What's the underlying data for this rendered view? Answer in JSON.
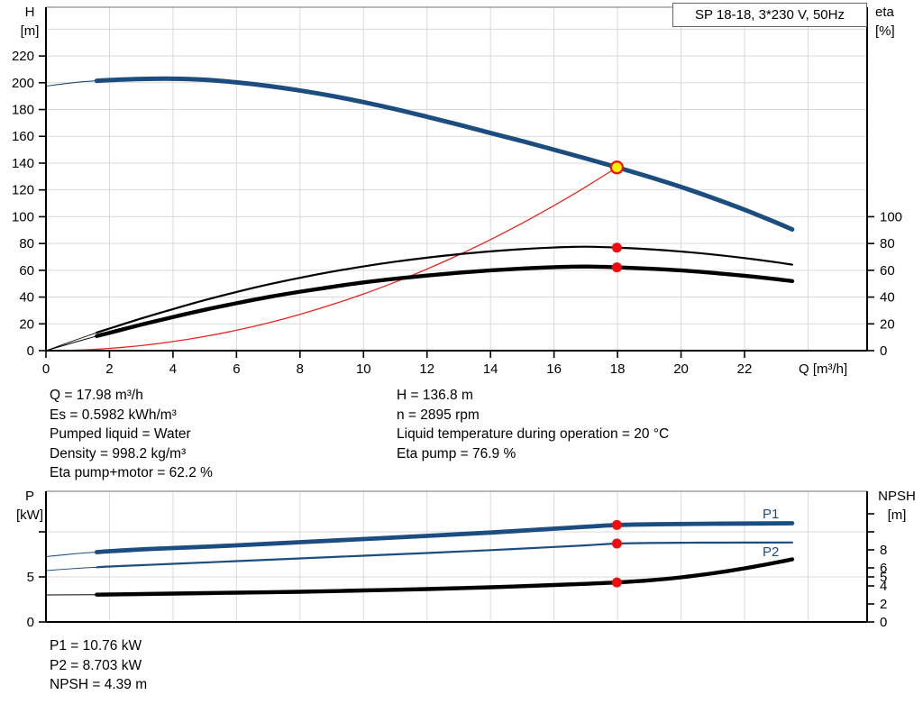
{
  "colors": {
    "blue": "#1b4d80",
    "black": "#000000",
    "red": "#e8251d",
    "marker_red": "#f20d0d",
    "duty_fill": "#ffee00",
    "grid": "#d9d9d9",
    "border": "#a0a0a0",
    "axis": "#000000"
  },
  "info_left": {
    "q": "Q = 17.98 m³/h",
    "es": "Es = 0.5982 kWh/m³",
    "liquid": "Pumped liquid = Water",
    "density": "Density = 998.2 kg/m³",
    "eta_pump_motor": "Eta pump+motor = 62.2 %"
  },
  "info_right": {
    "h": "H = 136.8 m",
    "n": "n = 2895 rpm",
    "temp": "Liquid temperature during operation = 20 °C",
    "eta_pump": "Eta pump = 76.9 %"
  },
  "results": {
    "p1": "P1 = 10.76 kW",
    "p2": "P2 = 8.703 kW",
    "npsh": "NPSH = 4.39 m"
  },
  "inplot_labels": {
    "p1": "P1",
    "p2": "P2"
  },
  "chart_data": [
    {
      "type": "line",
      "name": "head-efficiency-chart",
      "title": "SP 18-18, 3*230 V, 50Hz",
      "x_axis": {
        "label": "Q [m³/h]",
        "range": [
          0,
          25.86
        ],
        "ticks": [
          [
            0,
            "0"
          ],
          [
            2,
            "2"
          ],
          [
            4,
            "4"
          ],
          [
            6,
            "6"
          ],
          [
            8,
            "8"
          ],
          [
            10,
            "10"
          ],
          [
            12,
            "12"
          ],
          [
            14,
            "14"
          ],
          [
            16,
            "16"
          ],
          [
            18,
            "18"
          ],
          [
            20,
            "20"
          ],
          [
            22,
            "22"
          ]
        ],
        "gridlines": [
          2,
          4,
          6,
          8,
          10,
          12,
          14,
          16,
          18,
          20,
          22,
          24
        ]
      },
      "y_left": {
        "label": "H",
        "unit": "[m]",
        "range": [
          0,
          256.4
        ],
        "ticks": [
          [
            0,
            "0"
          ],
          [
            20,
            "20"
          ],
          [
            40,
            "40"
          ],
          [
            60,
            "60"
          ],
          [
            80,
            "80"
          ],
          [
            100,
            "100"
          ],
          [
            120,
            "120"
          ],
          [
            140,
            "140"
          ],
          [
            160,
            "160"
          ],
          [
            180,
            "180"
          ],
          [
            200,
            "200"
          ],
          [
            220,
            "220"
          ]
        ],
        "gridlines": [
          20,
          40,
          60,
          80,
          100,
          120,
          140,
          160,
          180,
          200,
          220,
          240
        ]
      },
      "y_right": {
        "label": "eta",
        "unit": "[%]",
        "range": [
          0,
          256.4
        ],
        "ticks": [
          [
            0,
            "0"
          ],
          [
            20,
            "20"
          ],
          [
            40,
            "40"
          ],
          [
            60,
            "60"
          ],
          [
            80,
            "80"
          ],
          [
            100,
            "100"
          ]
        ]
      },
      "series": [
        {
          "name": "system-curve",
          "color": "red",
          "axis": "left",
          "width": 1.3,
          "points": [
            [
              0,
              0
            ],
            [
              1,
              0.4
            ],
            [
              2,
              1.7
            ],
            [
              3,
              3.8
            ],
            [
              4,
              6.8
            ],
            [
              5,
              10.6
            ],
            [
              6,
              15.2
            ],
            [
              7,
              20.7
            ],
            [
              8,
              27.1
            ],
            [
              9,
              34.3
            ],
            [
              10,
              42.3
            ],
            [
              11,
              51.2
            ],
            [
              12,
              60.9
            ],
            [
              13,
              71.5
            ],
            [
              14,
              82.9
            ],
            [
              15,
              95.2
            ],
            [
              16,
              108.3
            ],
            [
              17,
              122.3
            ],
            [
              17.98,
              136.8
            ]
          ]
        },
        {
          "name": "eta-pump-curve",
          "color": "black",
          "axis": "right",
          "width": 2.2,
          "thin_until": 1.6,
          "thin_width": 0.9,
          "points": [
            [
              0,
              0
            ],
            [
              1,
              8.5
            ],
            [
              1.6,
              13.5
            ],
            [
              2,
              16.5
            ],
            [
              3,
              24
            ],
            [
              4,
              31
            ],
            [
              5,
              37.7
            ],
            [
              6,
              43.8
            ],
            [
              7,
              49.4
            ],
            [
              8,
              54.4
            ],
            [
              9,
              58.9
            ],
            [
              10,
              62.9
            ],
            [
              11,
              66.4
            ],
            [
              12,
              69.4
            ],
            [
              13,
              72
            ],
            [
              14,
              74.1
            ],
            [
              15,
              75.8
            ],
            [
              16,
              77
            ],
            [
              17,
              77.6
            ],
            [
              18,
              76.9
            ],
            [
              19,
              75.7
            ],
            [
              20,
              74
            ],
            [
              21,
              71.8
            ],
            [
              22,
              69.1
            ],
            [
              23,
              66
            ],
            [
              23.5,
              64.2
            ]
          ]
        },
        {
          "name": "eta-pump-motor-curve",
          "color": "black",
          "axis": "right",
          "width": 4.4,
          "thin_until": 1.6,
          "thin_width": 1,
          "points": [
            [
              0,
              0
            ],
            [
              1,
              6.9
            ],
            [
              1.6,
              10.9
            ],
            [
              2,
              13.3
            ],
            [
              3,
              19.4
            ],
            [
              4,
              25.1
            ],
            [
              5,
              30.5
            ],
            [
              6,
              35.4
            ],
            [
              7,
              40
            ],
            [
              8,
              44
            ],
            [
              9,
              47.6
            ],
            [
              10,
              50.9
            ],
            [
              11,
              53.7
            ],
            [
              12,
              56.1
            ],
            [
              13,
              58.2
            ],
            [
              14,
              59.9
            ],
            [
              15,
              61.3
            ],
            [
              16,
              62.3
            ],
            [
              17,
              62.8
            ],
            [
              18,
              62.2
            ],
            [
              19,
              61.2
            ],
            [
              20,
              59.9
            ],
            [
              21,
              58.1
            ],
            [
              22,
              55.9
            ],
            [
              23,
              53.4
            ],
            [
              23.5,
              51.9
            ]
          ]
        },
        {
          "name": "pump-head-curve",
          "color": "blue",
          "axis": "left",
          "width": 5,
          "thin_until": 1.6,
          "thin_width": 1.1,
          "points": [
            [
              0,
              197.5
            ],
            [
              1,
              200.4
            ],
            [
              1.6,
              201.5
            ],
            [
              2,
              202
            ],
            [
              3,
              202.8
            ],
            [
              4,
              203
            ],
            [
              5,
              202.2
            ],
            [
              6,
              200.3
            ],
            [
              7,
              197.6
            ],
            [
              8,
              194.2
            ],
            [
              9,
              190.2
            ],
            [
              10,
              185.5
            ],
            [
              11,
              180.3
            ],
            [
              12,
              174.6
            ],
            [
              13,
              168.7
            ],
            [
              14,
              162.5
            ],
            [
              15,
              156.4
            ],
            [
              16,
              150
            ],
            [
              17,
              143.5
            ],
            [
              18,
              136.8
            ],
            [
              19,
              129.7
            ],
            [
              20,
              122.2
            ],
            [
              21,
              114
            ],
            [
              22,
              105.2
            ],
            [
              23,
              95.6
            ],
            [
              23.5,
              90.5
            ]
          ]
        }
      ],
      "markers": [
        {
          "name": "duty-point-marker",
          "x": 17.98,
          "y": 136.8,
          "axis": "left",
          "style": "duty"
        },
        {
          "name": "eta-pump-point-marker",
          "x": 17.98,
          "y": 76.9,
          "axis": "right",
          "style": "dot"
        },
        {
          "name": "eta-pump-motor-point-marker",
          "x": 17.98,
          "y": 62.2,
          "axis": "right",
          "style": "dot"
        }
      ]
    },
    {
      "type": "line",
      "name": "power-npsh-chart",
      "x_axis": {
        "label": "",
        "range": [
          0,
          25.86
        ],
        "ticks": [],
        "gridlines": [
          2,
          4,
          6,
          8,
          10,
          12,
          14,
          16,
          18,
          20,
          22,
          24
        ]
      },
      "y_left": {
        "label": "P",
        "unit": "[kW]",
        "range": [
          0,
          14.5
        ],
        "ticks": [
          [
            0,
            "0"
          ],
          [
            5,
            "5"
          ],
          [
            10,
            ""
          ]
        ],
        "gridlines": [
          5,
          10
        ]
      },
      "y_right": {
        "label": "NPSH",
        "unit": "[m]",
        "range": [
          0,
          14.5
        ],
        "ticks": [
          [
            0,
            "0"
          ],
          [
            2,
            "2"
          ],
          [
            4,
            "4"
          ],
          [
            5,
            "5"
          ],
          [
            6,
            "6"
          ],
          [
            8,
            "8"
          ],
          [
            10,
            ""
          ],
          [
            12,
            ""
          ]
        ]
      },
      "series": [
        {
          "name": "p2-curve",
          "color": "blue",
          "axis": "left",
          "width": 2.2,
          "thin_until": 1.6,
          "thin_width": 0.9,
          "points": [
            [
              0,
              5.7
            ],
            [
              1,
              5.95
            ],
            [
              1.6,
              6.07
            ],
            [
              2,
              6.15
            ],
            [
              3,
              6.3
            ],
            [
              4,
              6.45
            ],
            [
              6,
              6.75
            ],
            [
              8,
              7.05
            ],
            [
              10,
              7.35
            ],
            [
              12,
              7.65
            ],
            [
              14,
              7.97
            ],
            [
              16,
              8.32
            ],
            [
              17,
              8.5
            ],
            [
              18,
              8.7
            ],
            [
              19,
              8.76
            ],
            [
              20,
              8.79
            ],
            [
              21,
              8.8
            ],
            [
              22,
              8.81
            ],
            [
              23.5,
              8.82
            ]
          ]
        },
        {
          "name": "p1-curve",
          "color": "blue",
          "axis": "left",
          "width": 4.8,
          "thin_until": 1.6,
          "thin_width": 1.1,
          "points": [
            [
              0,
              7.25
            ],
            [
              1,
              7.6
            ],
            [
              1.6,
              7.75
            ],
            [
              2,
              7.85
            ],
            [
              3,
              8.05
            ],
            [
              4,
              8.2
            ],
            [
              6,
              8.5
            ],
            [
              8,
              8.85
            ],
            [
              10,
              9.2
            ],
            [
              12,
              9.55
            ],
            [
              14,
              9.92
            ],
            [
              16,
              10.35
            ],
            [
              17,
              10.56
            ],
            [
              18,
              10.76
            ],
            [
              19,
              10.83
            ],
            [
              20,
              10.87
            ],
            [
              21,
              10.9
            ],
            [
              22,
              10.92
            ],
            [
              23.5,
              10.95
            ]
          ]
        },
        {
          "name": "npsh-curve",
          "color": "black",
          "axis": "right",
          "width": 4.4,
          "thin_until": 1.6,
          "thin_width": 1,
          "points": [
            [
              0,
              3.0
            ],
            [
              1.6,
              3.03
            ],
            [
              2,
              3.05
            ],
            [
              4,
              3.15
            ],
            [
              6,
              3.25
            ],
            [
              8,
              3.35
            ],
            [
              10,
              3.5
            ],
            [
              12,
              3.65
            ],
            [
              14,
              3.85
            ],
            [
              16,
              4.1
            ],
            [
              17,
              4.23
            ],
            [
              18,
              4.39
            ],
            [
              19,
              4.62
            ],
            [
              20,
              4.95
            ],
            [
              21,
              5.4
            ],
            [
              22,
              5.95
            ],
            [
              23,
              6.6
            ],
            [
              23.5,
              6.95
            ]
          ]
        }
      ],
      "markers": [
        {
          "name": "p1-point-marker",
          "x": 17.98,
          "y": 10.76,
          "axis": "left",
          "style": "dot"
        },
        {
          "name": "p2-point-marker",
          "x": 17.98,
          "y": 8.703,
          "axis": "left",
          "style": "dot"
        },
        {
          "name": "npsh-point-marker",
          "x": 17.98,
          "y": 4.39,
          "axis": "right",
          "style": "dot"
        }
      ]
    }
  ]
}
